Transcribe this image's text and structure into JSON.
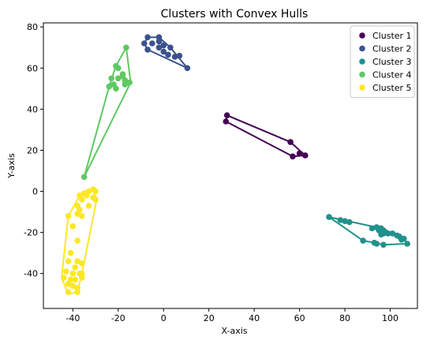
{
  "chart_data": {
    "type": "scatter",
    "title": "Clusters with Convex Hulls",
    "xlabel": "X-axis",
    "ylabel": "Y-axis",
    "xlim": [
      -53,
      112
    ],
    "ylim": [
      -57,
      82
    ],
    "xticks": [
      -40,
      -20,
      0,
      20,
      40,
      60,
      80,
      100
    ],
    "yticks": [
      -40,
      -20,
      0,
      20,
      40,
      60,
      80
    ],
    "grid": false,
    "legend_position": "top-right",
    "series": [
      {
        "name": "Cluster 1",
        "color": "#440154",
        "points": [
          [
            28,
            37
          ],
          [
            27.5,
            34
          ],
          [
            56,
            24
          ],
          [
            60,
            18.5
          ],
          [
            62.5,
            17.5
          ],
          [
            57,
            17
          ]
        ],
        "hull": [
          [
            28,
            37
          ],
          [
            56,
            24
          ],
          [
            62.5,
            17.5
          ],
          [
            57,
            17
          ],
          [
            27.5,
            34
          ],
          [
            28,
            37
          ]
        ]
      },
      {
        "name": "Cluster 2",
        "color": "#3b528b",
        "points": [
          [
            -7,
            75
          ],
          [
            -2,
            75
          ],
          [
            -8.5,
            72
          ],
          [
            -5,
            72
          ],
          [
            0,
            71
          ],
          [
            -2,
            70
          ],
          [
            3,
            70
          ],
          [
            -7,
            69
          ],
          [
            0,
            68
          ],
          [
            2,
            66.5
          ],
          [
            5,
            65.5
          ],
          [
            7,
            66
          ],
          [
            10.5,
            60
          ],
          [
            -2,
            73
          ]
        ],
        "hull": [
          [
            -7,
            75
          ],
          [
            -2,
            75
          ],
          [
            3,
            70
          ],
          [
            10.5,
            60
          ],
          [
            -7,
            69
          ],
          [
            -8.5,
            72
          ],
          [
            -7,
            75
          ]
        ]
      },
      {
        "name": "Cluster 3",
        "color": "#21918c",
        "points": [
          [
            73,
            -12.5
          ],
          [
            78,
            -14
          ],
          [
            80,
            -14.5
          ],
          [
            82,
            -15
          ],
          [
            92,
            -18
          ],
          [
            94,
            -17.5
          ],
          [
            95,
            -19
          ],
          [
            96,
            -18
          ],
          [
            97,
            -19
          ],
          [
            96,
            -21
          ],
          [
            97,
            -20.5
          ],
          [
            98,
            -20
          ],
          [
            99,
            -20.5
          ],
          [
            101,
            -20.5
          ],
          [
            103,
            -21.5
          ],
          [
            104,
            -22
          ],
          [
            105,
            -23.5
          ],
          [
            106,
            -23
          ],
          [
            88,
            -24
          ],
          [
            93,
            -25
          ],
          [
            94,
            -25.5
          ],
          [
            97,
            -26
          ],
          [
            107.5,
            -25.5
          ]
        ],
        "hull": [
          [
            73,
            -12.5
          ],
          [
            96,
            -18
          ],
          [
            106,
            -23
          ],
          [
            107.5,
            -25.5
          ],
          [
            97,
            -26
          ],
          [
            93,
            -25
          ],
          [
            88,
            -24
          ],
          [
            73,
            -12.5
          ]
        ]
      },
      {
        "name": "Cluster 4",
        "color": "#5ec962",
        "points": [
          [
            -16.5,
            70
          ],
          [
            -21,
            61
          ],
          [
            -20,
            60
          ],
          [
            -18,
            57
          ],
          [
            -23,
            55
          ],
          [
            -20,
            55
          ],
          [
            -18,
            56
          ],
          [
            -22,
            52
          ],
          [
            -24,
            51
          ],
          [
            -21,
            50
          ],
          [
            -17,
            52
          ],
          [
            -15,
            53
          ],
          [
            -17,
            54
          ],
          [
            -35,
            7
          ]
        ],
        "hull": [
          [
            -16.5,
            70
          ],
          [
            -14.5,
            53
          ],
          [
            -35,
            7
          ],
          [
            -24,
            51
          ],
          [
            -21,
            61
          ],
          [
            -16.5,
            70
          ]
        ]
      },
      {
        "name": "Cluster 5",
        "color": "#fde725",
        "points": [
          [
            -31,
            1
          ],
          [
            -33,
            0
          ],
          [
            -30,
            0
          ],
          [
            -35,
            -1
          ],
          [
            -37,
            -2
          ],
          [
            -34,
            -2
          ],
          [
            -31,
            -3
          ],
          [
            -36,
            -4
          ],
          [
            -30,
            -4
          ],
          [
            -38,
            -7
          ],
          [
            -33,
            -7
          ],
          [
            -37,
            -9
          ],
          [
            -42,
            -12
          ],
          [
            -38,
            -11
          ],
          [
            -36,
            -12
          ],
          [
            -40,
            -17
          ],
          [
            -38,
            -24
          ],
          [
            -41,
            -30
          ],
          [
            -42,
            -34
          ],
          [
            -38,
            -34
          ],
          [
            -36,
            -35
          ],
          [
            -39,
            -37
          ],
          [
            -43,
            -39
          ],
          [
            -40,
            -40
          ],
          [
            -37,
            -40
          ],
          [
            -44,
            -42
          ],
          [
            -41,
            -43
          ],
          [
            -39,
            -43
          ],
          [
            -42,
            -45
          ],
          [
            -40,
            -46
          ],
          [
            -38,
            -47
          ],
          [
            -42,
            -49
          ],
          [
            -38,
            -49
          ],
          [
            -36,
            -40
          ],
          [
            -36,
            -42
          ]
        ],
        "hull": [
          [
            -31,
            1
          ],
          [
            -29.5,
            -4
          ],
          [
            -36,
            -40
          ],
          [
            -38,
            -49
          ],
          [
            -42,
            -50
          ],
          [
            -45,
            -42
          ],
          [
            -42,
            -12
          ],
          [
            -37,
            -2
          ],
          [
            -31,
            1
          ]
        ]
      }
    ]
  }
}
